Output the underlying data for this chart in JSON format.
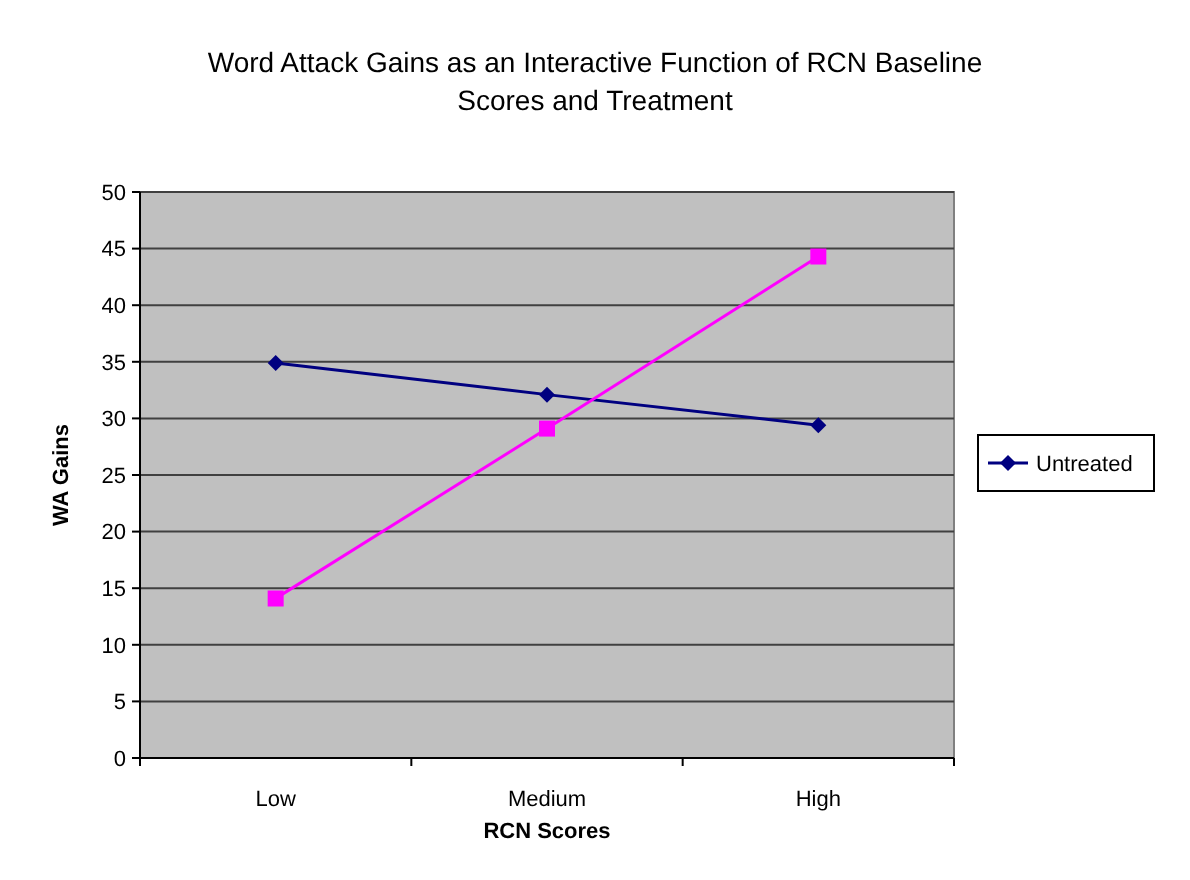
{
  "chart_data": {
    "type": "line",
    "title": "Word Attack Gains as an Interactive Function of RCN Baseline Scores and Treatment",
    "xlabel": "RCN Scores",
    "ylabel": "WA Gains",
    "categories": [
      "Low",
      "Medium",
      "High"
    ],
    "series": [
      {
        "name": "Untreated",
        "color": "#000080",
        "marker": "diamond",
        "values": [
          34.9,
          32.1,
          29.4
        ]
      },
      {
        "color": "#ff00ff",
        "marker": "square",
        "values": [
          14.1,
          29.1,
          44.3
        ]
      }
    ],
    "ylim": [
      0,
      50
    ],
    "yticks": [
      0,
      5,
      10,
      15,
      20,
      25,
      30,
      35,
      40,
      45,
      50
    ],
    "grid": "y",
    "legend": "right"
  }
}
